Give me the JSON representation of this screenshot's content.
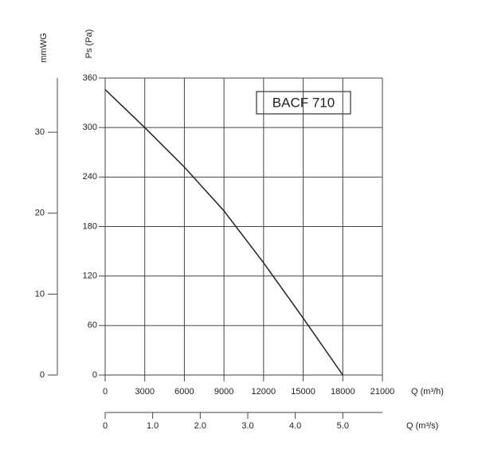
{
  "chart_data": {
    "type": "line",
    "title": "BACF 710",
    "x_label": "Q (m³/h)",
    "y_label": "Ps (Pa)",
    "y2_label": "mmWG",
    "x2_label": "Q (m³/s)",
    "x": [
      0,
      3000,
      6000,
      9000,
      12000,
      15000,
      18000
    ],
    "series": [
      {
        "color": "#222222",
        "values": [
          346,
          300,
          252,
          199,
          136,
          69,
          0
        ]
      }
    ],
    "xlim": [
      0,
      21000
    ],
    "xticks": [
      0,
      3000,
      6000,
      9000,
      12000,
      15000,
      18000,
      21000
    ],
    "ylim": [
      0,
      360
    ],
    "yticks": [
      0,
      60,
      120,
      180,
      240,
      300,
      360
    ],
    "y2lim": [
      0,
      36.7
    ],
    "y2ticks": [
      0,
      10,
      20,
      30
    ],
    "x2lim": [
      0,
      5.833
    ],
    "x2ticks": [
      0,
      {
        "value": 1,
        "label": "1.0"
      },
      {
        "value": 2,
        "label": "2.0"
      },
      {
        "value": 3,
        "label": "3.0"
      },
      {
        "value": 4,
        "label": "4.0"
      },
      {
        "value": 5,
        "label": "5.0"
      }
    ],
    "grid": true
  }
}
